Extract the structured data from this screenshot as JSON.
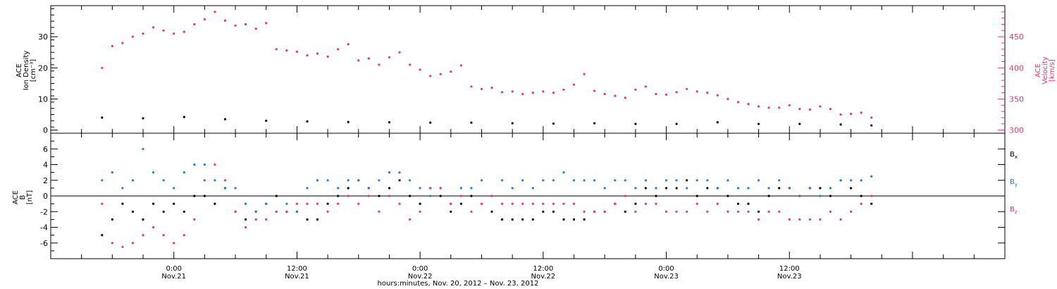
{
  "colors": {
    "black": "#000000",
    "pink": "#e8386b",
    "blue": "#1e7fd6"
  },
  "chart_data": [
    {
      "type": "scatter",
      "panel": "top",
      "ylabel_left_lines": [
        "ACE",
        "Ion Density",
        "[cm⁻³]"
      ],
      "ylabel_right_lines": [
        "ACE",
        "Velocity",
        "[km/s]"
      ],
      "ylim_left": [
        -1,
        40
      ],
      "yticks_left": [
        0,
        10,
        20,
        30
      ],
      "ylim_right": [
        295,
        500
      ],
      "yticks_right": [
        300,
        350,
        400,
        450
      ],
      "series": [
        {
          "key": "velocity",
          "axis": "right",
          "color": "pink",
          "x_hours": [
            0,
            1,
            2,
            3,
            4,
            5,
            6,
            7,
            8,
            9,
            10,
            11,
            12,
            13,
            14,
            15,
            16,
            17,
            18,
            19,
            20,
            21,
            22,
            23,
            24,
            25,
            26,
            27,
            28,
            29,
            30,
            31,
            32,
            33,
            34,
            35,
            36,
            37,
            38,
            39,
            40,
            41,
            42,
            43,
            44,
            45,
            46,
            47,
            48,
            49,
            50,
            51,
            52,
            53,
            54,
            55,
            56,
            57,
            58,
            59,
            60,
            61,
            62,
            63,
            64,
            65,
            66,
            67,
            68,
            69,
            70,
            71,
            72,
            73,
            74,
            75
          ],
          "values": [
            400,
            435,
            440,
            450,
            455,
            465,
            460,
            455,
            458,
            470,
            478,
            490,
            476,
            468,
            470,
            463,
            472,
            430,
            428,
            426,
            420,
            423,
            418,
            430,
            438,
            412,
            415,
            405,
            417,
            425,
            405,
            397,
            387,
            390,
            394,
            404,
            370,
            366,
            368,
            361,
            362,
            358,
            360,
            362,
            360,
            365,
            373,
            390,
            363,
            358,
            355,
            352,
            365,
            370,
            358,
            357,
            361,
            366,
            362,
            360,
            356,
            350,
            345,
            342,
            338,
            336,
            336,
            340,
            334,
            333,
            338,
            334,
            325,
            326,
            328,
            320
          ]
        },
        {
          "key": "density",
          "axis": "left",
          "color": "black",
          "x_hours": [
            0,
            4,
            8,
            12,
            16,
            20,
            24,
            28,
            32,
            36,
            40,
            44,
            48,
            52,
            56,
            60,
            64,
            68,
            72,
            75
          ],
          "values": [
            4,
            3.8,
            4.2,
            3.5,
            3.0,
            2.8,
            2.6,
            2.5,
            2.4,
            2.4,
            2.2,
            2.1,
            2.2,
            2.0,
            2.0,
            2.5,
            2.0,
            2.0,
            1.8,
            1.5
          ]
        }
      ]
    },
    {
      "type": "scatter",
      "panel": "bottom",
      "ylabel_left_lines": [
        "ACE",
        "B",
        "[nT]"
      ],
      "ylim": [
        -8,
        8
      ],
      "yticks": [
        -6,
        -4,
        -2,
        0,
        2,
        4,
        6
      ],
      "legend": [
        {
          "label": "B",
          "sub": "x",
          "color": "black"
        },
        {
          "label": "B",
          "sub": "y",
          "color": "blue"
        },
        {
          "label": "B",
          "sub": "z",
          "color": "pink"
        }
      ],
      "series": [
        {
          "key": "bx",
          "color": "black",
          "x_hours": [
            0,
            1,
            2,
            3,
            4,
            5,
            6,
            7,
            8,
            9,
            10,
            11,
            12,
            13,
            14,
            15,
            16,
            17,
            18,
            19,
            20,
            21,
            22,
            23,
            24,
            25,
            26,
            27,
            28,
            29,
            30,
            31,
            32,
            33,
            34,
            35,
            36,
            37,
            38,
            39,
            40,
            41,
            42,
            43,
            44,
            45,
            46,
            47,
            48,
            49,
            50,
            51,
            52,
            53,
            54,
            55,
            56,
            57,
            58,
            59,
            60,
            61,
            62,
            63,
            64,
            65,
            66,
            67,
            68,
            69,
            70,
            71,
            72,
            73,
            74,
            75
          ],
          "values": [
            -5,
            -3,
            -1,
            -2,
            -3,
            -1,
            -2,
            -1,
            -2,
            0,
            0,
            -1,
            1,
            -2,
            -3,
            -2,
            -1,
            0,
            -2,
            -2,
            -3,
            -3,
            -1,
            0,
            1,
            2,
            1,
            0,
            1,
            2,
            0,
            -1,
            1,
            0,
            -2,
            -1,
            0,
            -1,
            -2,
            -3,
            -3,
            -3,
            -3,
            -2,
            -2,
            -3,
            -3,
            -3,
            -2,
            -2,
            -1,
            -2,
            -1,
            1,
            0,
            1,
            1,
            2,
            0,
            1,
            1,
            0,
            -1,
            -1,
            -2,
            0,
            1,
            1,
            0,
            1,
            1,
            0,
            2,
            1,
            0,
            -1
          ]
        },
        {
          "key": "by",
          "color": "blue",
          "x_hours": [
            0,
            1,
            2,
            3,
            4,
            5,
            6,
            7,
            8,
            9,
            10,
            11,
            12,
            13,
            14,
            15,
            16,
            17,
            18,
            19,
            20,
            21,
            22,
            23,
            24,
            25,
            26,
            27,
            28,
            29,
            30,
            31,
            32,
            33,
            34,
            35,
            36,
            37,
            38,
            39,
            40,
            41,
            42,
            43,
            44,
            45,
            46,
            47,
            48,
            49,
            50,
            51,
            52,
            53,
            54,
            55,
            56,
            57,
            58,
            59,
            60,
            61,
            62,
            63,
            64,
            65,
            66,
            67,
            68,
            69,
            70,
            71,
            72,
            73,
            74,
            75
          ],
          "values": [
            2,
            3,
            1,
            2,
            6,
            3,
            2,
            1,
            3,
            4,
            4,
            2,
            1,
            1,
            -1,
            -2,
            -1,
            -2,
            -1,
            -2,
            1,
            2,
            2,
            1,
            2,
            2,
            1,
            2,
            3,
            3,
            2,
            1,
            0,
            1,
            -1,
            1,
            1,
            2,
            0,
            2,
            1,
            2,
            1,
            2,
            2,
            3,
            2,
            2,
            2,
            1,
            2,
            2,
            1,
            2,
            1,
            2,
            2,
            1,
            2,
            2,
            1,
            2,
            1,
            1,
            2,
            1,
            2,
            1,
            0,
            1,
            0,
            1,
            2,
            2,
            2,
            2.5
          ]
        },
        {
          "key": "bz",
          "color": "pink",
          "x_hours": [
            0,
            1,
            2,
            3,
            4,
            5,
            6,
            7,
            8,
            9,
            10,
            11,
            12,
            13,
            14,
            15,
            16,
            17,
            18,
            19,
            20,
            21,
            22,
            23,
            24,
            25,
            26,
            27,
            28,
            29,
            30,
            31,
            32,
            33,
            34,
            35,
            36,
            37,
            38,
            39,
            40,
            41,
            42,
            43,
            44,
            45,
            46,
            47,
            48,
            49,
            50,
            51,
            52,
            53,
            54,
            55,
            56,
            57,
            58,
            59,
            60,
            61,
            62,
            63,
            64,
            65,
            66,
            67,
            68,
            69,
            70,
            71,
            72,
            73,
            74,
            75
          ],
          "values": [
            -1,
            -6,
            -6.5,
            -6,
            -5,
            -4,
            -5,
            -6,
            -5,
            -3,
            2,
            4,
            2,
            -2,
            -4,
            -3,
            -3,
            -2,
            -2,
            -1,
            -1,
            -1,
            -2,
            -1,
            0,
            -1,
            0,
            -2,
            0,
            -1,
            -3,
            -2,
            1,
            1,
            -1,
            0,
            -2,
            -1,
            0,
            -1,
            -1,
            -1,
            -1,
            -1,
            -1,
            -1,
            -1,
            -2,
            -2,
            -2,
            -1,
            0,
            -2,
            -1,
            -1,
            -2,
            -2,
            -2,
            -1,
            -2,
            -1,
            -2,
            -2,
            -2,
            -3,
            -2,
            -2,
            -3,
            -3,
            -3,
            -3,
            -2,
            -3,
            -2,
            -1,
            0
          ]
        }
      ]
    }
  ],
  "x_axis": {
    "ticks": [
      {
        "hour": 7,
        "time": "0:00",
        "date": "Nov.21"
      },
      {
        "hour": 19,
        "time": "12:00",
        "date": "Nov.21"
      },
      {
        "hour": 31,
        "time": "0:00",
        "date": "Nov.22"
      },
      {
        "hour": 43,
        "time": "12:00",
        "date": "Nov.22"
      },
      {
        "hour": 55,
        "time": "0:00",
        "date": "Nov.23"
      },
      {
        "hour": 67,
        "time": "12:00",
        "date": "Nov.23"
      }
    ],
    "xlabel": "hours:minutes, Nov. 20, 2012 – Nov. 23, 2012"
  }
}
